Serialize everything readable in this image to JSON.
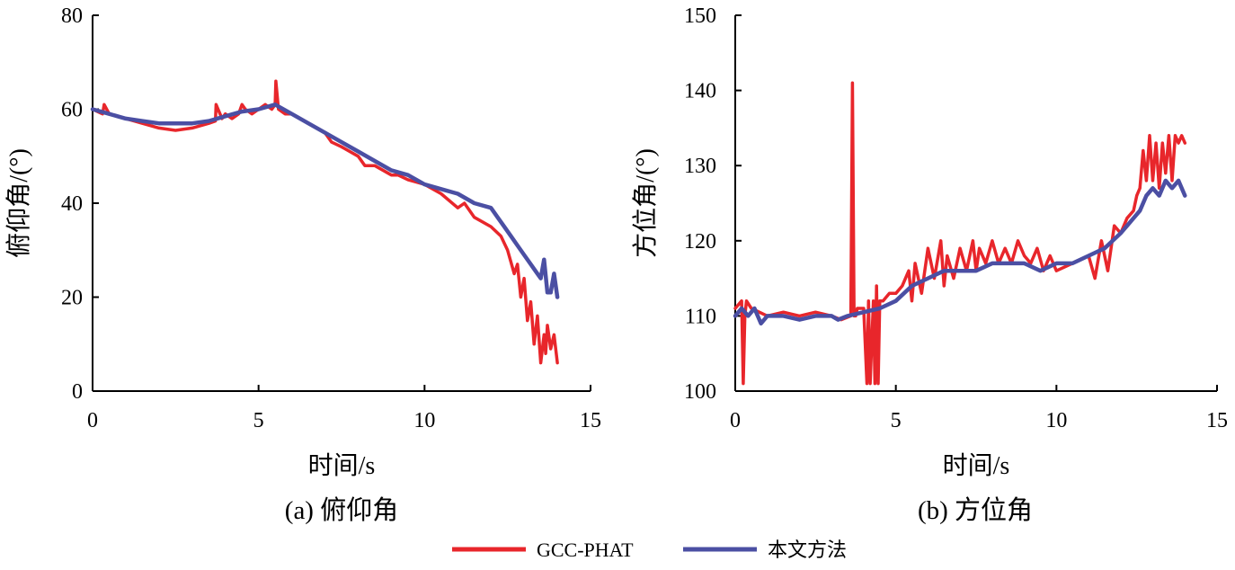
{
  "legend": {
    "items": [
      {
        "label": "GCC-PHAT",
        "color": "#e8262b"
      },
      {
        "label": "本文方法",
        "color": "#4b4fa3"
      }
    ]
  },
  "chart_data": [
    {
      "type": "line",
      "caption": "(a) 俯仰角",
      "xlabel": "时间/s",
      "ylabel": "俯仰角/(°)",
      "xlim": [
        0,
        15
      ],
      "ylim": [
        0,
        80
      ],
      "xticks": [
        0,
        5,
        10,
        15
      ],
      "yticks": [
        0,
        20,
        40,
        60,
        80
      ],
      "series": [
        {
          "name": "GCC-PHAT",
          "color": "#e8262b",
          "x": [
            0,
            0.3,
            0.35,
            0.5,
            1,
            1.5,
            2,
            2.5,
            3,
            3.5,
            3.7,
            3.72,
            3.9,
            4,
            4.2,
            4.4,
            4.5,
            4.6,
            4.8,
            5,
            5.2,
            5.4,
            5.5,
            5.52,
            5.6,
            5.8,
            6,
            6.5,
            7,
            7.2,
            7.5,
            8,
            8.2,
            8.5,
            9,
            9.2,
            9.5,
            10,
            10.5,
            11,
            11.2,
            11.5,
            12,
            12.3,
            12.5,
            12.7,
            12.8,
            12.9,
            13,
            13.1,
            13.2,
            13.3,
            13.4,
            13.5,
            13.6,
            13.65,
            13.7,
            13.8,
            13.9,
            14
          ],
          "y": [
            60,
            59,
            61,
            59,
            58,
            57,
            56,
            55.5,
            56,
            57,
            57.5,
            61,
            58,
            59,
            58,
            59,
            61,
            60,
            59,
            60,
            61,
            60,
            61,
            66,
            60,
            59,
            59,
            57,
            55,
            53,
            52,
            50,
            48,
            48,
            46,
            46,
            45,
            44,
            42,
            39,
            40,
            37,
            35,
            33,
            30,
            25,
            27,
            20,
            24,
            15,
            19,
            10,
            16,
            6,
            12,
            8,
            14,
            9,
            12,
            6
          ]
        },
        {
          "name": "本文方法",
          "color": "#4b4fa3",
          "x": [
            0,
            0.5,
            1,
            1.5,
            2,
            2.5,
            3,
            3.5,
            4,
            4.5,
            5,
            5.5,
            6,
            6.5,
            7,
            7.5,
            8,
            8.5,
            9,
            9.5,
            10,
            10.5,
            11,
            11.5,
            12,
            12.2,
            12.4,
            12.6,
            12.8,
            13,
            13.2,
            13.4,
            13.5,
            13.6,
            13.7,
            13.8,
            13.9,
            14
          ],
          "y": [
            60,
            59,
            58,
            57.5,
            57,
            57,
            57,
            57.5,
            58.5,
            59.5,
            60,
            61,
            59,
            57,
            55,
            53,
            51,
            49,
            47,
            46,
            44,
            43,
            42,
            40,
            39,
            37,
            35,
            33,
            31,
            29,
            27,
            25,
            24,
            28,
            21,
            21,
            25,
            20
          ]
        }
      ]
    },
    {
      "type": "line",
      "caption": "(b) 方位角",
      "xlabel": "时间/s",
      "ylabel": "方位角/(°)",
      "xlim": [
        0,
        15
      ],
      "ylim": [
        100,
        150
      ],
      "xticks": [
        0,
        5,
        10,
        15
      ],
      "yticks": [
        100,
        110,
        120,
        130,
        140,
        150
      ],
      "series": [
        {
          "name": "GCC-PHAT",
          "color": "#e8262b",
          "x": [
            0,
            0.2,
            0.25,
            0.3,
            0.35,
            0.5,
            1,
            1.5,
            2,
            2.5,
            3,
            3.3,
            3.6,
            3.65,
            3.7,
            3.75,
            3.8,
            4,
            4.1,
            4.15,
            4.2,
            4.3,
            4.35,
            4.4,
            4.45,
            4.5,
            4.6,
            4.8,
            5,
            5.2,
            5.4,
            5.5,
            5.6,
            5.8,
            6,
            6.2,
            6.4,
            6.5,
            6.6,
            6.8,
            7,
            7.2,
            7.4,
            7.5,
            7.6,
            7.8,
            8,
            8.2,
            8.4,
            8.6,
            8.8,
            9,
            9.2,
            9.4,
            9.6,
            9.8,
            10,
            10.5,
            11,
            11.2,
            11.4,
            11.6,
            11.8,
            12,
            12.2,
            12.4,
            12.5,
            12.6,
            12.7,
            12.8,
            12.9,
            13,
            13.1,
            13.2,
            13.3,
            13.4,
            13.5,
            13.6,
            13.7,
            13.8,
            13.9,
            14
          ],
          "y": [
            111,
            112,
            101,
            110,
            112,
            111,
            110,
            110.5,
            110,
            110.5,
            110,
            109.5,
            110,
            141,
            110,
            110,
            111,
            111,
            101,
            112,
            101,
            112,
            101,
            114,
            101,
            112,
            112,
            113,
            113,
            114,
            116,
            112,
            117,
            113,
            119,
            115,
            120,
            114,
            118,
            115,
            119,
            116,
            120,
            116,
            119,
            117,
            120,
            117,
            119,
            117,
            120,
            118,
            117,
            119,
            116,
            118,
            116,
            117,
            118,
            115,
            120,
            116,
            122,
            121,
            123,
            124,
            126,
            127,
            132,
            128,
            134,
            128,
            133,
            127,
            133,
            129,
            134,
            128,
            134,
            133,
            134,
            133
          ]
        },
        {
          "name": "本文方法",
          "color": "#4b4fa3",
          "x": [
            0,
            0.2,
            0.4,
            0.6,
            0.8,
            1,
            1.5,
            2,
            2.5,
            3,
            3.2,
            3.5,
            4,
            4.5,
            5,
            5.5,
            6,
            6.5,
            7,
            7.5,
            8,
            8.5,
            9,
            9.5,
            10,
            10.5,
            11,
            11.5,
            12,
            12.2,
            12.4,
            12.6,
            12.8,
            13,
            13.2,
            13.4,
            13.6,
            13.8,
            14
          ],
          "y": [
            110,
            111,
            110,
            111,
            109,
            110,
            110,
            109.5,
            110,
            110,
            109.5,
            110,
            110.5,
            111,
            112,
            114,
            115,
            116,
            116,
            116,
            117,
            117,
            117,
            116,
            117,
            117,
            118,
            119,
            121,
            122,
            123,
            124,
            126,
            127,
            126,
            128,
            127,
            128,
            126
          ]
        }
      ]
    }
  ]
}
